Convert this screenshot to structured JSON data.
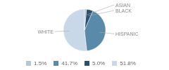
{
  "chart_data": {
    "type": "pie",
    "categories": [
      "WHITE",
      "HISPANIC",
      "BLACK",
      "ASIAN"
    ],
    "values": [
      51.8,
      41.7,
      5.0,
      1.5
    ],
    "value_labels": [
      "51.8%",
      "41.7%",
      "5.0%",
      "1.5%"
    ],
    "colors": [
      "#c9d8e8",
      "#5a8aaa",
      "#2a5070",
      "#b0c8d8"
    ],
    "legend": "bottom"
  }
}
